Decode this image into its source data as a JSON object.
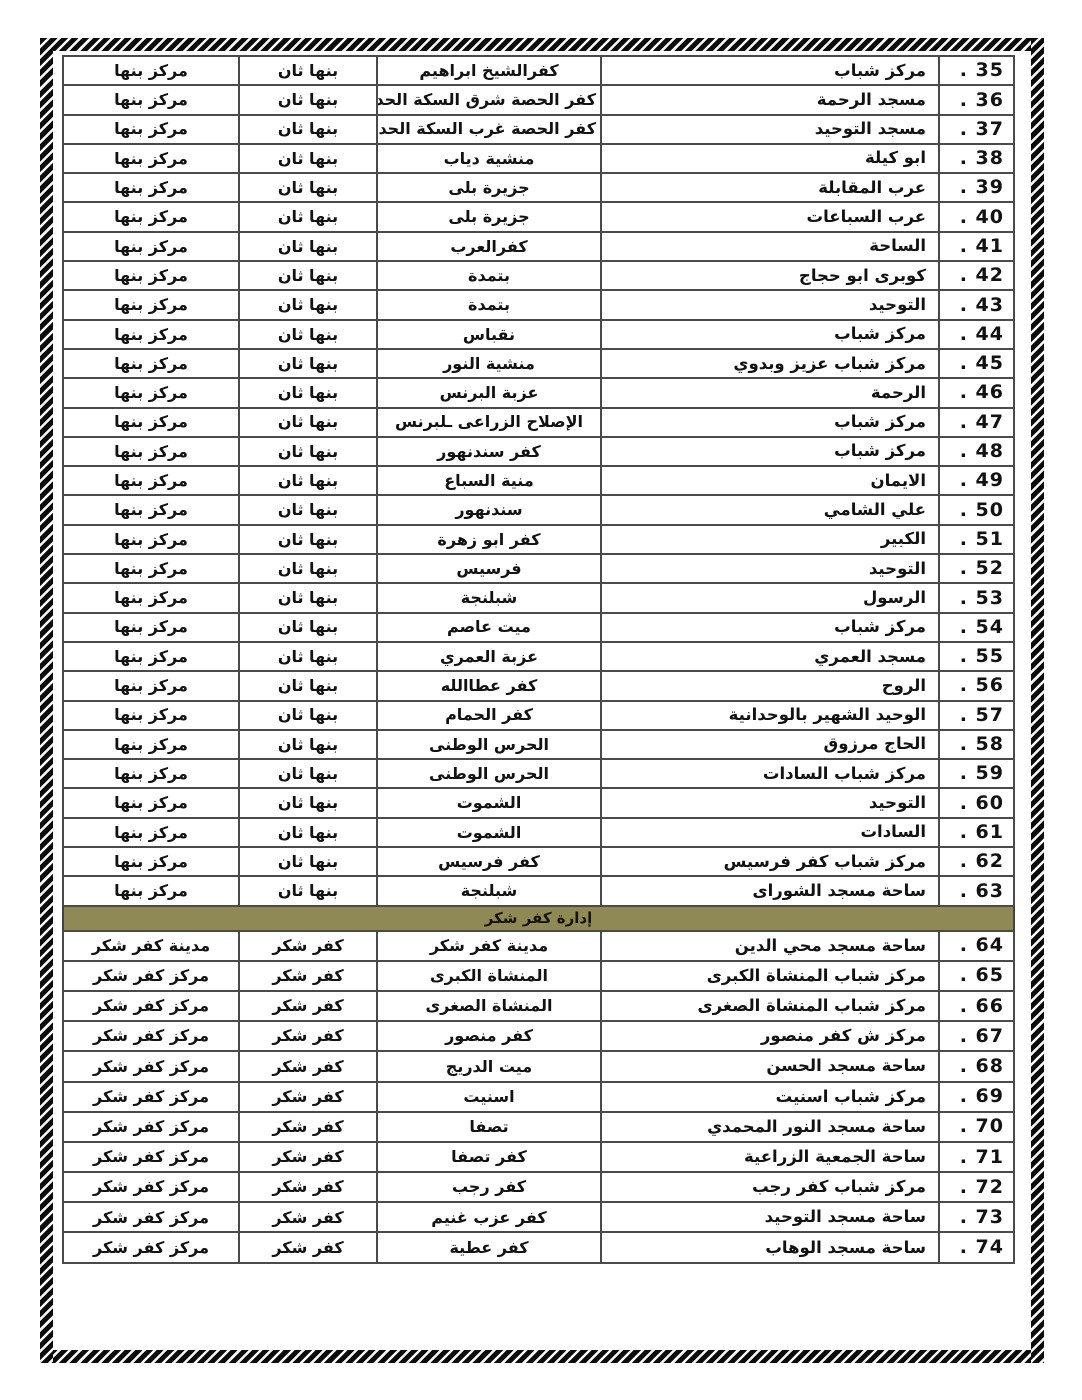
{
  "document": {
    "language": "ar",
    "direction": "rtl",
    "colors": {
      "page_bg": "#ffffff",
      "frame_stripe_dark": "#0b0b0b",
      "frame_stripe_light": "#fafafa",
      "grid_line": "#4a4a4a",
      "section_header_bg": "#8f8956",
      "text": "#121212"
    }
  },
  "table": {
    "rows": [
      {
        "num": "35 .",
        "name": "مركز شباب",
        "village": "كفرالشيخ ابراهيم",
        "district": "بنها ثان",
        "center": "مركز بنها"
      },
      {
        "num": "36 .",
        "name": "مسجد الرحمة",
        "village": "كفر الحصة شرق السكة الحديد",
        "district": "بنها ثان",
        "center": "مركز بنها"
      },
      {
        "num": "37 .",
        "name": "مسجد التوحيد",
        "village": "كفر الحصة غرب السكة الحديد",
        "district": "بنها ثان",
        "center": "مركز بنها"
      },
      {
        "num": "38 .",
        "name": "ابو كيلة",
        "village": "منشية دياب",
        "district": "بنها ثان",
        "center": "مركز بنها"
      },
      {
        "num": "39 .",
        "name": "عرب المقابلة",
        "village": "جزيرة بلى",
        "district": "بنها ثان",
        "center": "مركز بنها"
      },
      {
        "num": "40 .",
        "name": "عرب السباعات",
        "village": "جزيرة بلى",
        "district": "بنها ثان",
        "center": "مركز بنها"
      },
      {
        "num": "41 .",
        "name": "الساحة",
        "village": "كفرالعرب",
        "district": "بنها ثان",
        "center": "مركز بنها"
      },
      {
        "num": "42 .",
        "name": "كوبرى ابو حجاج",
        "village": "بتمدة",
        "district": "بنها ثان",
        "center": "مركز بنها"
      },
      {
        "num": "43 .",
        "name": "التوحيد",
        "village": "بتمدة",
        "district": "بنها ثان",
        "center": "مركز بنها"
      },
      {
        "num": "44 .",
        "name": "مركز شباب",
        "village": "نقباس",
        "district": "بنها ثان",
        "center": "مركز بنها"
      },
      {
        "num": "45 .",
        "name": "مركز شباب عزيز وبدوي",
        "village": "منشية النور",
        "district": "بنها ثان",
        "center": "مركز بنها"
      },
      {
        "num": "46 .",
        "name": "الرحمة",
        "village": "عزبة البرنس",
        "district": "بنها ثان",
        "center": "مركز بنها"
      },
      {
        "num": "47 .",
        "name": "مركز شباب",
        "village": "الإصلاح الزراعى ـلبرنس",
        "district": "بنها ثان",
        "center": "مركز بنها"
      },
      {
        "num": "48 .",
        "name": "مركز شباب",
        "village": "كفر سندنهور",
        "district": "بنها ثان",
        "center": "مركز بنها"
      },
      {
        "num": "49 .",
        "name": "الايمان",
        "village": "منية السباع",
        "district": "بنها ثان",
        "center": "مركز بنها"
      },
      {
        "num": "50 .",
        "name": "علي الشامي",
        "village": "سندنهور",
        "district": "بنها ثان",
        "center": "مركز بنها"
      },
      {
        "num": "51 .",
        "name": "الكبير",
        "village": "كفر ابو زهرة",
        "district": "بنها ثان",
        "center": "مركز بنها"
      },
      {
        "num": "52 .",
        "name": "التوحيد",
        "village": "فرسيس",
        "district": "بنها ثان",
        "center": "مركز بنها"
      },
      {
        "num": "53 .",
        "name": "الرسول",
        "village": "شبلنجة",
        "district": "بنها ثان",
        "center": "مركز بنها"
      },
      {
        "num": "54 .",
        "name": "مركز شباب",
        "village": "ميت عاصم",
        "district": "بنها ثان",
        "center": "مركز بنها"
      },
      {
        "num": "55 .",
        "name": "مسجد العمري",
        "village": "عزبة العمري",
        "district": "بنها ثان",
        "center": "مركز بنها"
      },
      {
        "num": "56 .",
        "name": "الروح",
        "village": "كفر عطاالله",
        "district": "بنها ثان",
        "center": "مركز بنها"
      },
      {
        "num": "57 .",
        "name": "الوحيد الشهير بالوحدانية",
        "village": "كفر الحمام",
        "district": "بنها ثان",
        "center": "مركز بنها"
      },
      {
        "num": "58 .",
        "name": "الحاج مرزوق",
        "village": "الحرس الوطنى",
        "district": "بنها ثان",
        "center": "مركز بنها"
      },
      {
        "num": "59 .",
        "name": "مركز شباب السادات",
        "village": "الحرس الوطنى",
        "district": "بنها ثان",
        "center": "مركز بنها"
      },
      {
        "num": "60 .",
        "name": "التوحيد",
        "village": "الشموت",
        "district": "بنها ثان",
        "center": "مركز بنها"
      },
      {
        "num": "61 .",
        "name": "السادات",
        "village": "الشموت",
        "district": "بنها ثان",
        "center": "مركز بنها"
      },
      {
        "num": "62 .",
        "name": "مركز شباب كفر فرسيس",
        "village": "كفر فرسيس",
        "district": "بنها ثان",
        "center": "مركز بنها"
      },
      {
        "num": "63 .",
        "name": "ساحة مسجد الشوراى",
        "village": "شبلنجة",
        "district": "بنها ثان",
        "center": "مركز بنها"
      },
      {
        "type": "section_header",
        "label": "إدارة كفر شكر"
      },
      {
        "num": "64 .",
        "name": "ساحة مسجد محي الدين",
        "village": "مدينة كفر شكر",
        "district": "كفر شكر",
        "center": "مدينة كفر شكر"
      },
      {
        "num": "65 .",
        "name": "مركز شباب المنشاة الكبرى",
        "village": "المنشاة الكبرى",
        "district": "كفر شكر",
        "center": "مركز كفر شكر"
      },
      {
        "num": "66 .",
        "name": "مركز شباب المنشاة الصغرى",
        "village": "المنشاة الصغرى",
        "district": "كفر شكر",
        "center": "مركز كفر شكر"
      },
      {
        "num": "67 .",
        "name": "مركز ش كفر منصور",
        "village": "كفر منصور",
        "district": "كفر شكر",
        "center": "مركز كفر شكر"
      },
      {
        "num": "68 .",
        "name": "ساحة مسجد الحسن",
        "village": "ميت الدريج",
        "district": "كفر شكر",
        "center": "مركز كفر شكر"
      },
      {
        "num": "69 .",
        "name": "مركز شباب اسنيت",
        "village": "اسنيت",
        "district": "كفر شكر",
        "center": "مركز كفر شكر"
      },
      {
        "num": "70 .",
        "name": "ساحة مسجد النور المحمدي",
        "village": "تصفا",
        "district": "كفر شكر",
        "center": "مركز كفر شكر"
      },
      {
        "num": "71 .",
        "name": "ساحة الجمعية الزراعية",
        "village": "كفر تصفا",
        "district": "كفر شكر",
        "center": "مركز كفر شكر"
      },
      {
        "num": "72 .",
        "name": "مركز شباب كفر رجب",
        "village": "كفر رجب",
        "district": "كفر شكر",
        "center": "مركز كفر شكر"
      },
      {
        "num": "73 .",
        "name": "ساحة مسجد التوحيد",
        "village": "كفر عزب غنيم",
        "district": "كفر شكر",
        "center": "مركز كفر شكر"
      },
      {
        "num": "74 .",
        "name": "ساحة مسجد الوهاب",
        "village": "كفر عطية",
        "district": "كفر شكر",
        "center": "مركز كفر شكر"
      }
    ]
  }
}
